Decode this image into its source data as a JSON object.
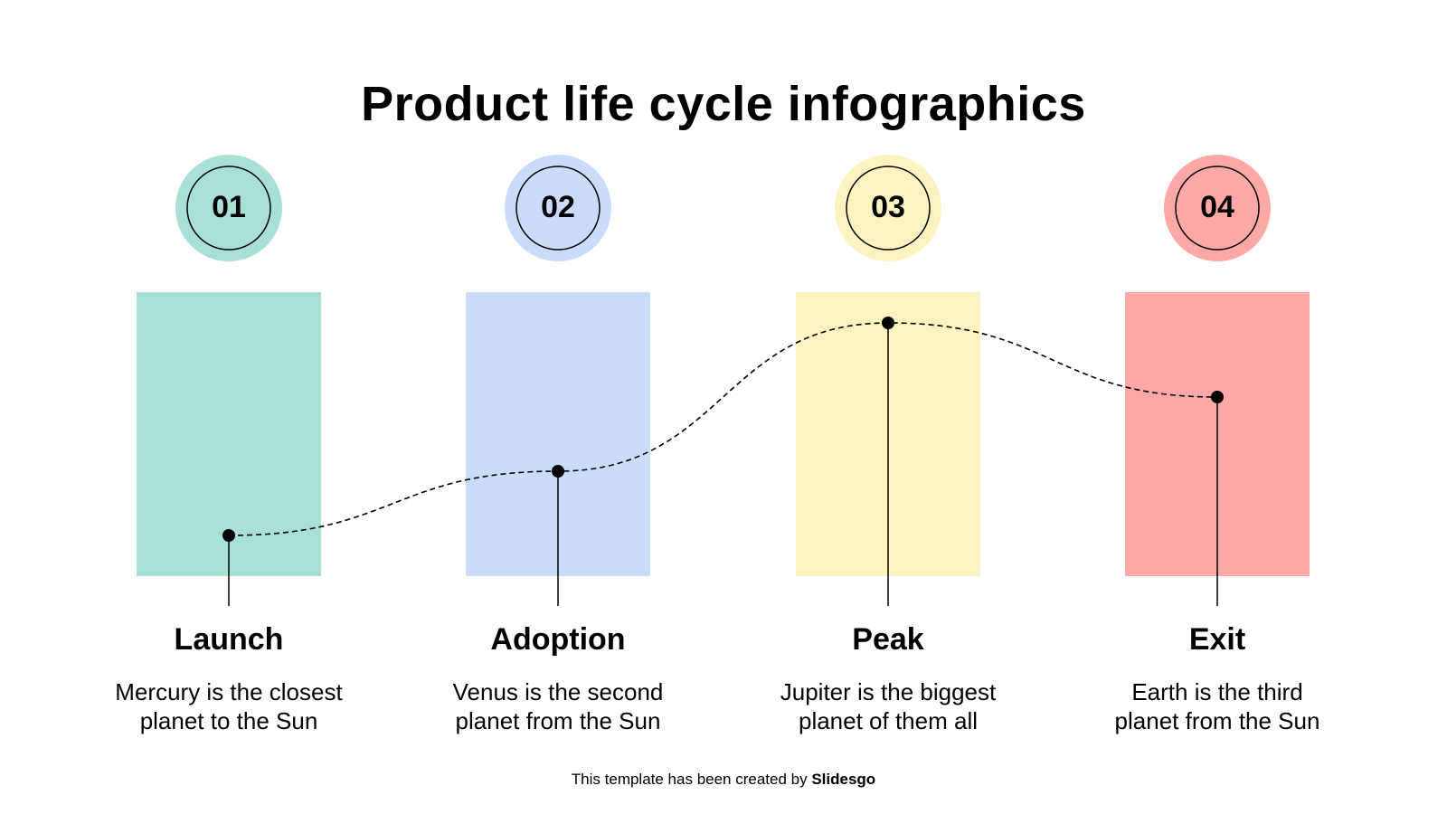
{
  "title": "Product life cycle infographics",
  "stages": [
    {
      "number": "01",
      "label": "Launch",
      "desc_line1": "Mercury is the closest",
      "desc_line2": "planet to the Sun",
      "color": "#a8e0d8",
      "curve_level": 1
    },
    {
      "number": "02",
      "label": "Adoption",
      "desc_line1": "Venus is the second",
      "desc_line2": "planet from the Sun",
      "color": "#c9dcfb",
      "curve_level": 2
    },
    {
      "number": "03",
      "label": "Peak",
      "desc_line1": "Jupiter is the biggest",
      "desc_line2": "planet of them all",
      "color": "#fdf3c0",
      "curve_level": 4
    },
    {
      "number": "04",
      "label": "Exit",
      "desc_line1": "Earth is the third",
      "desc_line2": "planet from the Sun",
      "color": "#fca8a6",
      "curve_level": 3
    }
  ],
  "footer": {
    "prefix": "This template has been created by ",
    "brand": "Slidesgo"
  }
}
